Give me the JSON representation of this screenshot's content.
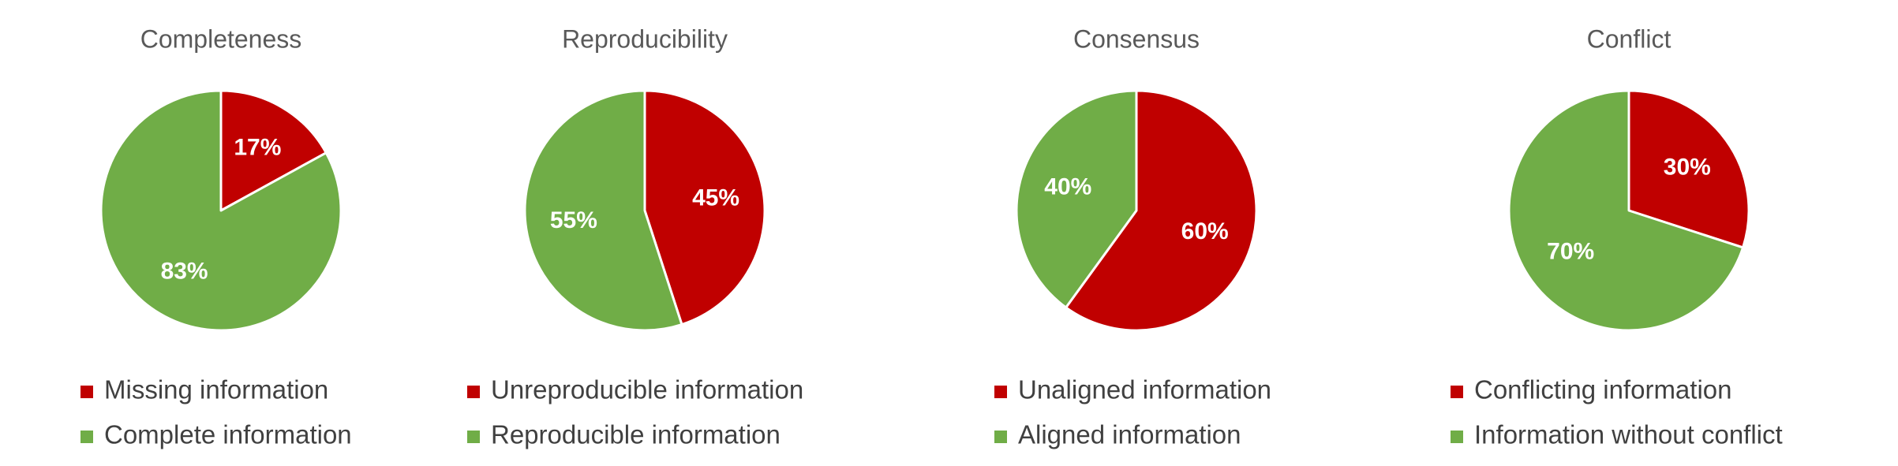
{
  "chart_data": [
    {
      "type": "pie",
      "title": "Completeness",
      "slices": [
        {
          "label": "Missing information",
          "value": 17,
          "display": "17%",
          "color": "#C00000"
        },
        {
          "label": "Complete information",
          "value": 83,
          "display": "83%",
          "color": "#70AD47"
        }
      ],
      "legend_position": "bottom",
      "start_angle_deg": 0,
      "direction": "clockwise"
    },
    {
      "type": "pie",
      "title": "Reproducibility",
      "slices": [
        {
          "label": "Unreproducible information",
          "value": 45,
          "display": "45%",
          "color": "#C00000"
        },
        {
          "label": "Reproducible information",
          "value": 55,
          "display": "55%",
          "color": "#70AD47"
        }
      ],
      "legend_position": "bottom",
      "start_angle_deg": 0,
      "direction": "clockwise"
    },
    {
      "type": "pie",
      "title": "Consensus",
      "slices": [
        {
          "label": "Unaligned information",
          "value": 60,
          "display": "60%",
          "color": "#C00000"
        },
        {
          "label": "Aligned information",
          "value": 40,
          "display": "40%",
          "color": "#70AD47"
        }
      ],
      "legend_position": "bottom",
      "start_angle_deg": 0,
      "direction": "clockwise"
    },
    {
      "type": "pie",
      "title": "Conflict",
      "slices": [
        {
          "label": "Conflicting information",
          "value": 30,
          "display": "30%",
          "color": "#C00000"
        },
        {
          "label": "Information without conflict",
          "value": 70,
          "display": "70%",
          "color": "#70AD47"
        }
      ],
      "legend_position": "bottom",
      "start_angle_deg": 0,
      "direction": "clockwise"
    }
  ]
}
